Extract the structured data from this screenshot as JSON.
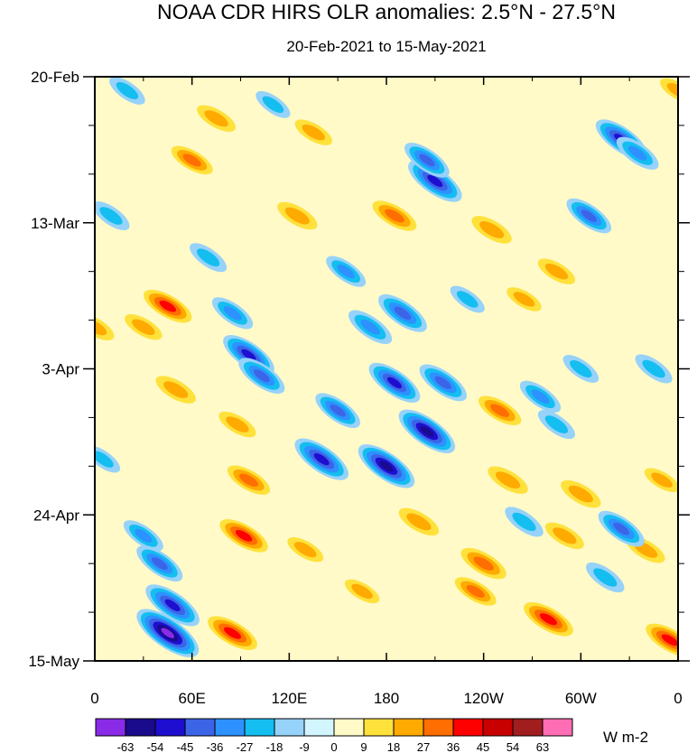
{
  "chart_data": {
    "type": "heatmap",
    "title": "NOAA CDR HIRS OLR anomalies: 2.5°N - 27.5°N",
    "subtitle": "20-Feb-2021 to 15-May-2021",
    "x_ticks": [
      "0",
      "60E",
      "120E",
      "180",
      "120W",
      "60W",
      "0"
    ],
    "x_range_deg_east": [
      0,
      360
    ],
    "x_tick_values": [
      0,
      60,
      120,
      180,
      240,
      300,
      360
    ],
    "y_ticks": [
      "20-Feb",
      "13-Mar",
      "3-Apr",
      "24-Apr",
      "15-May"
    ],
    "y_range_days": [
      0,
      84
    ],
    "y_tick_values": [
      0,
      21,
      42,
      63,
      84
    ],
    "y_minor_step_days": 7,
    "colorbar_levels": [
      "-63",
      "-54",
      "-45",
      "-36",
      "-27",
      "-18",
      "-9",
      "0",
      "9",
      "18",
      "27",
      "36",
      "45",
      "54",
      "63"
    ],
    "colorbar_colors": [
      "#8a2be8",
      "#1a0a8c",
      "#1e0ed0",
      "#3c64e6",
      "#2d91ff",
      "#14bef0",
      "#96d2fa",
      "#d2f5ff",
      "#fffac8",
      "#ffe13c",
      "#ffaa00",
      "#ff6e00",
      "#ff0000",
      "#c80000",
      "#a01e1e",
      "#ff6eb4"
    ],
    "units": "W m-2",
    "anomaly_features": [
      {
        "lon": 45,
        "day": 80,
        "value": -63
      },
      {
        "lon": 48,
        "day": 76,
        "value": -50
      },
      {
        "lon": 40,
        "day": 70,
        "value": -38
      },
      {
        "lon": 30,
        "day": 66,
        "value": -28
      },
      {
        "lon": 85,
        "day": 80,
        "value": 40
      },
      {
        "lon": 92,
        "day": 66,
        "value": 38
      },
      {
        "lon": 95,
        "day": 58,
        "value": 30
      },
      {
        "lon": 88,
        "day": 50,
        "value": 22
      },
      {
        "lon": 140,
        "day": 55,
        "value": -50
      },
      {
        "lon": 150,
        "day": 48,
        "value": -36
      },
      {
        "lon": 180,
        "day": 56,
        "value": -54
      },
      {
        "lon": 185,
        "day": 44,
        "value": -46
      },
      {
        "lon": 205,
        "day": 51,
        "value": -54
      },
      {
        "lon": 215,
        "day": 44,
        "value": -40
      },
      {
        "lon": 190,
        "day": 34,
        "value": -42
      },
      {
        "lon": 170,
        "day": 36,
        "value": -34
      },
      {
        "lon": 155,
        "day": 28,
        "value": -28
      },
      {
        "lon": 95,
        "day": 40,
        "value": -46
      },
      {
        "lon": 103,
        "day": 43,
        "value": -38
      },
      {
        "lon": 85,
        "day": 34,
        "value": -30
      },
      {
        "lon": 70,
        "day": 26,
        "value": -24
      },
      {
        "lon": 210,
        "day": 15,
        "value": -50
      },
      {
        "lon": 205,
        "day": 12,
        "value": -36
      },
      {
        "lon": 325,
        "day": 9,
        "value": -46
      },
      {
        "lon": 335,
        "day": 11,
        "value": -32
      },
      {
        "lon": 305,
        "day": 20,
        "value": -36
      },
      {
        "lon": 45,
        "day": 33,
        "value": 38
      },
      {
        "lon": 30,
        "day": 36,
        "value": 22
      },
      {
        "lon": 50,
        "day": 45,
        "value": 26
      },
      {
        "lon": 60,
        "day": 12,
        "value": 28
      },
      {
        "lon": 75,
        "day": 6,
        "value": 24
      },
      {
        "lon": 125,
        "day": 20,
        "value": 26
      },
      {
        "lon": 135,
        "day": 8,
        "value": 22
      },
      {
        "lon": 185,
        "day": 20,
        "value": 32
      },
      {
        "lon": 245,
        "day": 22,
        "value": 26
      },
      {
        "lon": 250,
        "day": 48,
        "value": 30
      },
      {
        "lon": 255,
        "day": 58,
        "value": 26
      },
      {
        "lon": 240,
        "day": 70,
        "value": 34
      },
      {
        "lon": 235,
        "day": 74,
        "value": 28
      },
      {
        "lon": 200,
        "day": 64,
        "value": 26
      },
      {
        "lon": 300,
        "day": 60,
        "value": 26
      },
      {
        "lon": 280,
        "day": 78,
        "value": 40
      },
      {
        "lon": 355,
        "day": 81,
        "value": 38
      },
      {
        "lon": 360,
        "day": 2,
        "value": 20
      },
      {
        "lon": 275,
        "day": 46,
        "value": -30
      },
      {
        "lon": 285,
        "day": 50,
        "value": -24
      },
      {
        "lon": 300,
        "day": 42,
        "value": -22
      },
      {
        "lon": 345,
        "day": 42,
        "value": -24
      },
      {
        "lon": 340,
        "day": 68,
        "value": 24
      },
      {
        "lon": 315,
        "day": 72,
        "value": -26
      },
      {
        "lon": 325,
        "day": 65,
        "value": -38
      },
      {
        "lon": 350,
        "day": 58,
        "value": 18
      },
      {
        "lon": 110,
        "day": 4,
        "value": -20
      },
      {
        "lon": 20,
        "day": 2,
        "value": -22
      },
      {
        "lon": 10,
        "day": 20,
        "value": -24
      },
      {
        "lon": 5,
        "day": 55,
        "value": -20
      },
      {
        "lon": 0,
        "day": 36,
        "value": 24
      },
      {
        "lon": 130,
        "day": 68,
        "value": 20
      },
      {
        "lon": 165,
        "day": 74,
        "value": 18
      },
      {
        "lon": 265,
        "day": 32,
        "value": 18
      },
      {
        "lon": 230,
        "day": 32,
        "value": -20
      },
      {
        "lon": 285,
        "day": 28,
        "value": 22
      },
      {
        "lon": 265,
        "day": 64,
        "value": -26
      },
      {
        "lon": 290,
        "day": 66,
        "value": 24
      }
    ]
  }
}
